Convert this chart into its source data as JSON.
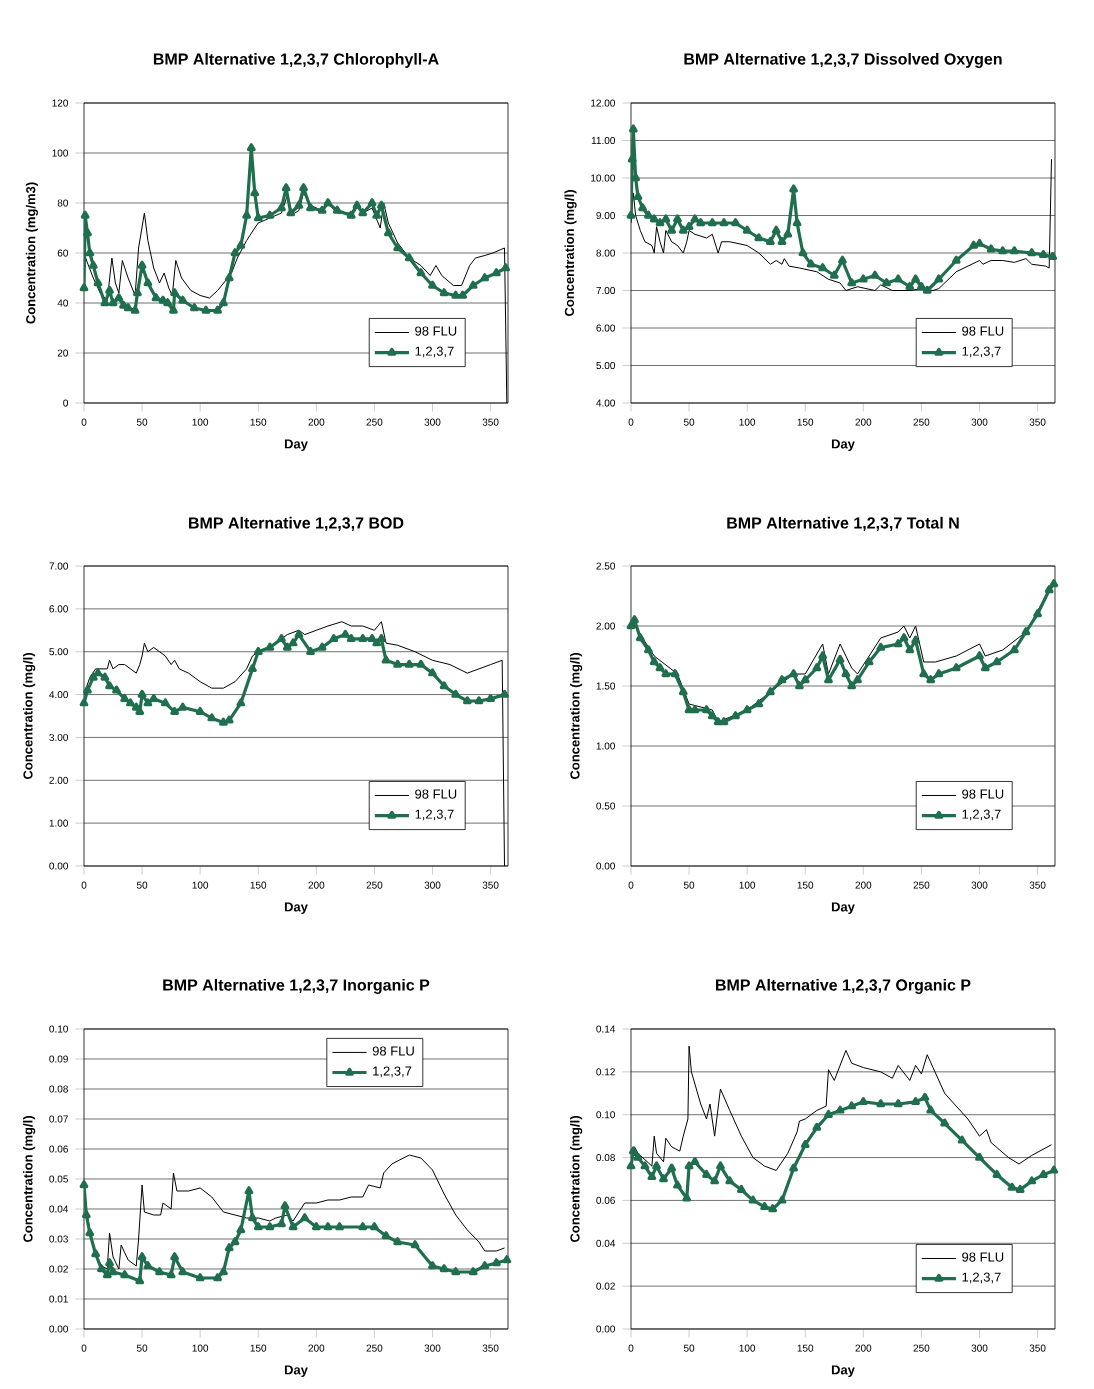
{
  "chart_data": [
    {
      "type": "line",
      "title": "BMP Alternative 1,2,3,7 Chlorophyll-A",
      "xlabel": "Day",
      "ylabel": "Concentration (mg/m3)",
      "xlim": [
        0,
        365
      ],
      "ylim": [
        0,
        120
      ],
      "xticks": [
        0,
        50,
        100,
        150,
        200,
        250,
        300,
        350
      ],
      "yticks": [
        0,
        20,
        40,
        60,
        80,
        100,
        120
      ],
      "grid": "y",
      "legend": "bottom right",
      "series": [
        {
          "name": "98 FLU",
          "color": "#000000",
          "marker": "none",
          "x": [
            0,
            3,
            8,
            14,
            20,
            24,
            27,
            30,
            33,
            38,
            44,
            47,
            52,
            55,
            60,
            65,
            69,
            73,
            76,
            79,
            84,
            92,
            100,
            108,
            115,
            122,
            127,
            132,
            140,
            147,
            150,
            160,
            170,
            175,
            178,
            185,
            189,
            195,
            205,
            210,
            218,
            230,
            235,
            240,
            248,
            255,
            258,
            262,
            270,
            280,
            290,
            298,
            303,
            308,
            318,
            325,
            332,
            337,
            345,
            352,
            362,
            364
          ],
          "values": [
            60,
            56,
            50,
            44,
            41,
            58,
            48,
            44,
            57,
            50,
            43,
            62,
            76,
            65,
            54,
            48,
            52,
            46,
            43,
            57,
            50,
            45,
            43,
            42,
            45,
            49,
            52,
            58,
            65,
            70,
            72,
            74,
            76,
            83,
            75,
            77,
            84,
            79,
            77,
            80,
            76,
            76,
            80,
            76,
            78,
            70,
            80,
            72,
            64,
            58,
            55,
            51,
            55,
            51,
            47,
            47,
            55,
            58,
            59,
            60,
            62,
            0
          ]
        },
        {
          "name": "1,2,3,7",
          "color": "#1f6e4e",
          "marker": "triangle",
          "x": [
            0,
            1,
            3,
            5,
            8,
            12,
            18,
            22,
            25,
            30,
            34,
            38,
            44,
            46,
            50,
            55,
            62,
            68,
            72,
            77,
            78,
            85,
            95,
            105,
            115,
            120,
            125,
            130,
            135,
            140,
            144,
            147,
            150,
            160,
            170,
            174,
            178,
            185,
            189,
            195,
            205,
            210,
            218,
            230,
            235,
            240,
            248,
            252,
            256,
            262,
            270,
            280,
            290,
            300,
            310,
            320,
            326,
            335,
            345,
            355,
            363
          ],
          "values": [
            46,
            75,
            68,
            60,
            55,
            48,
            40,
            45,
            40,
            42,
            39,
            38,
            37,
            44,
            55,
            48,
            42,
            41,
            40,
            37,
            44,
            41,
            38,
            37,
            37,
            40,
            50,
            60,
            63,
            75,
            102,
            84,
            74,
            75,
            78,
            86,
            76,
            79,
            86,
            78,
            77,
            80,
            77,
            75,
            79,
            76,
            80,
            75,
            79,
            68,
            62,
            58,
            52,
            47,
            44,
            43,
            43,
            47,
            50,
            52,
            54
          ]
        }
      ]
    },
    {
      "type": "line",
      "title": "BMP Alternative 1,2,3,7 Dissolved Oxygen",
      "xlabel": "Day",
      "ylabel": "Concentration (mg/l)",
      "xlim": [
        0,
        365
      ],
      "ylim": [
        4,
        12
      ],
      "xticks": [
        0,
        50,
        100,
        150,
        200,
        250,
        300,
        350
      ],
      "yticks": [
        {
          "value": 4,
          "label": "4.00"
        },
        {
          "value": 5,
          "label": "5.00"
        },
        {
          "value": 6,
          "label": "6.00"
        },
        {
          "value": 7,
          "label": "7.00"
        },
        {
          "value": 8,
          "label": "8.00"
        },
        {
          "value": 9,
          "label": "9.00"
        },
        {
          "value": 10,
          "label": "10.00"
        },
        {
          "value": 11,
          "label": "11.00"
        },
        {
          "value": 12,
          "label": "12.00"
        }
      ],
      "grid": "y",
      "legend": "bottom right",
      "series": [
        {
          "name": "98 FLU",
          "color": "#000000",
          "marker": "none",
          "x": [
            0,
            2,
            4,
            8,
            12,
            18,
            20,
            22,
            25,
            28,
            30,
            35,
            40,
            45,
            48,
            50,
            55,
            65,
            70,
            75,
            78,
            85,
            100,
            110,
            120,
            125,
            130,
            132,
            136,
            145,
            160,
            170,
            180,
            185,
            195,
            210,
            215,
            225,
            240,
            250,
            260,
            265,
            280,
            300,
            303,
            310,
            320,
            330,
            340,
            345,
            357,
            360,
            362
          ],
          "values": [
            8.8,
            9.6,
            9.0,
            8.6,
            8.3,
            8.2,
            8.0,
            8.7,
            8.3,
            8.0,
            8.6,
            8.3,
            8.2,
            8.0,
            8.3,
            8.6,
            8.5,
            8.4,
            8.5,
            8.0,
            8.3,
            8.3,
            8.2,
            8.0,
            7.7,
            7.8,
            7.7,
            7.85,
            7.65,
            7.6,
            7.5,
            7.3,
            7.2,
            7.0,
            7.1,
            7.0,
            7.15,
            7.0,
            7.0,
            7.05,
            7.0,
            7.05,
            7.5,
            7.8,
            7.7,
            7.8,
            7.8,
            7.75,
            7.85,
            7.7,
            7.65,
            7.6,
            10.5
          ]
        },
        {
          "name": "1,2,3,7",
          "color": "#1f6e4e",
          "marker": "triangle",
          "x": [
            0,
            1,
            2,
            4,
            6,
            10,
            15,
            20,
            25,
            30,
            35,
            40,
            45,
            50,
            55,
            60,
            70,
            80,
            90,
            100,
            110,
            120,
            125,
            130,
            135,
            140,
            143,
            148,
            155,
            165,
            175,
            182,
            190,
            200,
            210,
            220,
            230,
            240,
            245,
            250,
            255,
            265,
            280,
            295,
            300,
            310,
            320,
            330,
            345,
            355,
            363
          ],
          "values": [
            9.0,
            10.5,
            11.3,
            10.0,
            9.5,
            9.2,
            9.0,
            8.9,
            8.8,
            8.9,
            8.6,
            8.9,
            8.6,
            8.7,
            8.9,
            8.8,
            8.8,
            8.8,
            8.8,
            8.6,
            8.4,
            8.3,
            8.6,
            8.3,
            8.5,
            9.7,
            8.8,
            8.0,
            7.7,
            7.6,
            7.4,
            7.8,
            7.2,
            7.3,
            7.4,
            7.2,
            7.3,
            7.1,
            7.3,
            7.1,
            7.0,
            7.3,
            7.8,
            8.2,
            8.25,
            8.1,
            8.05,
            8.05,
            8.0,
            7.95,
            7.9
          ]
        }
      ]
    },
    {
      "type": "line",
      "title": "BMP Alternative 1,2,3,7 BOD",
      "xlabel": "Day",
      "ylabel": "Concentration (mg/l)",
      "xlim": [
        0,
        365
      ],
      "ylim": [
        0,
        7
      ],
      "xticks": [
        0,
        50,
        100,
        150,
        200,
        250,
        300,
        350
      ],
      "yticks": [
        {
          "value": 0,
          "label": "0.00"
        },
        {
          "value": 1,
          "label": "1.00"
        },
        {
          "value": 2,
          "label": "2.00"
        },
        {
          "value": 3,
          "label": "3.00"
        },
        {
          "value": 4,
          "label": "4.00"
        },
        {
          "value": 5,
          "label": "5.00"
        },
        {
          "value": 6,
          "label": "6.00"
        },
        {
          "value": 7,
          "label": "7.00"
        }
      ],
      "grid": "y",
      "legend": "bottom right",
      "series": [
        {
          "name": "98 FLU",
          "color": "#000000",
          "marker": "none",
          "x": [
            0,
            5,
            10,
            15,
            20,
            22,
            25,
            30,
            35,
            40,
            45,
            48,
            50,
            52,
            55,
            60,
            65,
            70,
            75,
            78,
            82,
            90,
            100,
            110,
            120,
            130,
            140,
            145,
            150,
            165,
            175,
            185,
            190,
            200,
            210,
            222,
            230,
            240,
            250,
            256,
            260,
            270,
            285,
            300,
            315,
            330,
            340,
            350,
            360,
            362
          ],
          "values": [
            4.0,
            4.4,
            4.6,
            4.6,
            4.6,
            4.8,
            4.6,
            4.7,
            4.7,
            4.6,
            4.5,
            4.7,
            4.9,
            5.2,
            5.0,
            5.1,
            5.0,
            4.9,
            4.7,
            4.8,
            4.6,
            4.5,
            4.3,
            4.15,
            4.15,
            4.3,
            4.6,
            4.9,
            5.0,
            5.2,
            5.4,
            5.5,
            5.4,
            5.5,
            5.6,
            5.7,
            5.6,
            5.6,
            5.5,
            5.7,
            5.2,
            5.15,
            5.0,
            4.8,
            4.7,
            4.5,
            4.6,
            4.7,
            4.8,
            0.0
          ]
        },
        {
          "name": "1,2,3,7",
          "color": "#1f6e4e",
          "marker": "triangle",
          "x": [
            0,
            3,
            8,
            12,
            18,
            22,
            28,
            35,
            40,
            45,
            48,
            50,
            55,
            60,
            70,
            78,
            85,
            100,
            110,
            120,
            125,
            135,
            145,
            150,
            160,
            170,
            175,
            180,
            185,
            195,
            205,
            215,
            225,
            230,
            240,
            248,
            252,
            256,
            260,
            270,
            280,
            290,
            300,
            310,
            320,
            330,
            340,
            350,
            362
          ],
          "values": [
            3.8,
            4.1,
            4.4,
            4.5,
            4.4,
            4.2,
            4.1,
            3.9,
            3.8,
            3.7,
            3.6,
            4.0,
            3.8,
            3.9,
            3.8,
            3.6,
            3.7,
            3.6,
            3.45,
            3.35,
            3.4,
            3.8,
            4.6,
            5.0,
            5.1,
            5.3,
            5.1,
            5.2,
            5.4,
            5.0,
            5.1,
            5.3,
            5.4,
            5.3,
            5.3,
            5.3,
            5.2,
            5.3,
            4.8,
            4.7,
            4.7,
            4.7,
            4.5,
            4.2,
            4.0,
            3.85,
            3.85,
            3.9,
            4.0
          ]
        }
      ]
    },
    {
      "type": "line",
      "title": "BMP Alternative 1,2,3,7 Total N",
      "xlabel": "Day",
      "ylabel": "Concentration (mg/l)",
      "xlim": [
        0,
        365
      ],
      "ylim": [
        0,
        2.5
      ],
      "xticks": [
        0,
        50,
        100,
        150,
        200,
        250,
        300,
        350
      ],
      "yticks": [
        {
          "value": 0,
          "label": "0.00"
        },
        {
          "value": 0.5,
          "label": "0.50"
        },
        {
          "value": 1,
          "label": "1.00"
        },
        {
          "value": 1.5,
          "label": "1.50"
        },
        {
          "value": 2,
          "label": "2.00"
        },
        {
          "value": 2.5,
          "label": "2.50"
        }
      ],
      "grid": "y",
      "legend": "bottom right",
      "series": [
        {
          "name": "98 FLU",
          "color": "#000000",
          "marker": "none",
          "x": [
            0,
            20,
            40,
            50,
            70,
            75,
            100,
            140,
            150,
            165,
            170,
            180,
            190,
            195,
            215,
            230,
            235,
            240,
            245,
            252,
            262,
            280,
            300,
            305,
            320,
            340,
            360,
            364
          ],
          "values": [
            2.05,
            1.75,
            1.6,
            1.35,
            1.3,
            1.2,
            1.3,
            1.6,
            1.6,
            1.85,
            1.6,
            1.85,
            1.65,
            1.6,
            1.9,
            1.95,
            2.0,
            1.9,
            2.0,
            1.7,
            1.7,
            1.75,
            1.85,
            1.75,
            1.8,
            1.95,
            2.3,
            2.35
          ]
        },
        {
          "name": "1,2,3,7",
          "color": "#1f6e4e",
          "marker": "triangle",
          "x": [
            0,
            3,
            8,
            15,
            20,
            25,
            30,
            38,
            45,
            50,
            55,
            65,
            70,
            75,
            80,
            90,
            100,
            110,
            120,
            130,
            140,
            145,
            150,
            160,
            165,
            170,
            180,
            185,
            190,
            195,
            205,
            215,
            230,
            235,
            240,
            245,
            252,
            258,
            265,
            280,
            300,
            305,
            315,
            330,
            340,
            350,
            360,
            364
          ],
          "values": [
            2.0,
            2.05,
            1.9,
            1.8,
            1.7,
            1.65,
            1.6,
            1.6,
            1.45,
            1.3,
            1.3,
            1.3,
            1.25,
            1.2,
            1.2,
            1.25,
            1.3,
            1.35,
            1.45,
            1.55,
            1.6,
            1.5,
            1.55,
            1.65,
            1.75,
            1.55,
            1.72,
            1.6,
            1.5,
            1.55,
            1.7,
            1.82,
            1.85,
            1.9,
            1.8,
            1.88,
            1.6,
            1.55,
            1.6,
            1.65,
            1.75,
            1.65,
            1.7,
            1.8,
            1.95,
            2.1,
            2.3,
            2.35
          ]
        }
      ]
    },
    {
      "type": "line",
      "title": "BMP Alternative 1,2,3,7 Inorganic P",
      "xlabel": "Day",
      "ylabel": "Concentration (mg/l)",
      "xlim": [
        0,
        365
      ],
      "ylim": [
        0,
        0.1
      ],
      "xticks": [
        0,
        50,
        100,
        150,
        200,
        250,
        300,
        350
      ],
      "yticks": [
        {
          "value": 0,
          "label": "0.00"
        },
        {
          "value": 0.01,
          "label": "0.01"
        },
        {
          "value": 0.02,
          "label": "0.02"
        },
        {
          "value": 0.03,
          "label": "0.03"
        },
        {
          "value": 0.04,
          "label": "0.04"
        },
        {
          "value": 0.05,
          "label": "0.05"
        },
        {
          "value": 0.06,
          "label": "0.06"
        },
        {
          "value": 0.07,
          "label": "0.07"
        },
        {
          "value": 0.08,
          "label": "0.08"
        },
        {
          "value": 0.09,
          "label": "0.09"
        },
        {
          "value": 0.1,
          "label": "0.10"
        }
      ],
      "grid": "y",
      "legend": "top right",
      "series": [
        {
          "name": "98 FLU",
          "color": "#000000",
          "marker": "none",
          "x": [
            0,
            2,
            5,
            10,
            15,
            20,
            22,
            25,
            30,
            32,
            38,
            45,
            47,
            50,
            52,
            60,
            66,
            68,
            75,
            77,
            80,
            90,
            100,
            110,
            120,
            130,
            140,
            150,
            160,
            165,
            175,
            180,
            190,
            200,
            210,
            220,
            230,
            240,
            245,
            255,
            258,
            265,
            280,
            290,
            300,
            310,
            320,
            330,
            340,
            345,
            355,
            362
          ],
          "values": [
            0.048,
            0.04,
            0.033,
            0.025,
            0.021,
            0.02,
            0.032,
            0.024,
            0.02,
            0.028,
            0.023,
            0.021,
            0.03,
            0.048,
            0.039,
            0.038,
            0.038,
            0.042,
            0.04,
            0.052,
            0.046,
            0.046,
            0.047,
            0.044,
            0.039,
            0.038,
            0.037,
            0.037,
            0.036,
            0.037,
            0.038,
            0.036,
            0.042,
            0.042,
            0.043,
            0.043,
            0.044,
            0.044,
            0.048,
            0.047,
            0.052,
            0.055,
            0.058,
            0.057,
            0.053,
            0.045,
            0.038,
            0.033,
            0.029,
            0.026,
            0.026,
            0.027
          ]
        },
        {
          "name": "1,2,3,7",
          "color": "#1f6e4e",
          "marker": "triangle",
          "x": [
            0,
            2,
            5,
            10,
            15,
            20,
            22,
            25,
            35,
            48,
            50,
            55,
            65,
            75,
            78,
            85,
            100,
            115,
            120,
            125,
            130,
            135,
            142,
            145,
            150,
            160,
            170,
            173,
            180,
            190,
            200,
            210,
            220,
            240,
            250,
            260,
            270,
            285,
            300,
            310,
            320,
            335,
            345,
            355,
            364
          ],
          "values": [
            0.048,
            0.038,
            0.032,
            0.025,
            0.02,
            0.018,
            0.022,
            0.019,
            0.018,
            0.016,
            0.024,
            0.021,
            0.019,
            0.018,
            0.024,
            0.019,
            0.017,
            0.017,
            0.019,
            0.027,
            0.029,
            0.033,
            0.046,
            0.037,
            0.034,
            0.034,
            0.035,
            0.041,
            0.034,
            0.037,
            0.034,
            0.034,
            0.034,
            0.034,
            0.034,
            0.031,
            0.029,
            0.028,
            0.021,
            0.02,
            0.019,
            0.019,
            0.021,
            0.022,
            0.023
          ]
        }
      ]
    },
    {
      "type": "line",
      "title": "BMP Alternative 1,2,3,7 Organic P",
      "xlabel": "Day",
      "ylabel": "Concentration (mg/l)",
      "xlim": [
        0,
        365
      ],
      "ylim": [
        0,
        0.14
      ],
      "xticks": [
        0,
        50,
        100,
        150,
        200,
        250,
        300,
        350
      ],
      "yticks": [
        {
          "value": 0,
          "label": "0.00"
        },
        {
          "value": 0.02,
          "label": "0.02"
        },
        {
          "value": 0.04,
          "label": "0.04"
        },
        {
          "value": 0.06,
          "label": "0.06"
        },
        {
          "value": 0.08,
          "label": "0.08"
        },
        {
          "value": 0.1,
          "label": "0.10"
        },
        {
          "value": 0.12,
          "label": "0.12"
        },
        {
          "value": 0.14,
          "label": "0.14"
        }
      ],
      "grid": "y",
      "legend": "bottom right",
      "series": [
        {
          "name": "98 FLU",
          "color": "#000000",
          "marker": "none",
          "x": [
            0,
            3,
            6,
            12,
            18,
            20,
            22,
            28,
            30,
            35,
            42,
            45,
            49,
            50,
            52,
            60,
            65,
            68,
            72,
            77,
            85,
            95,
            105,
            115,
            125,
            135,
            143,
            145,
            150,
            160,
            168,
            170,
            175,
            185,
            190,
            200,
            215,
            225,
            230,
            240,
            245,
            250,
            255,
            260,
            270,
            290,
            300,
            306,
            310,
            325,
            334,
            345,
            362
          ],
          "values": [
            0.083,
            0.085,
            0.082,
            0.079,
            0.076,
            0.09,
            0.082,
            0.078,
            0.089,
            0.085,
            0.083,
            0.09,
            0.098,
            0.132,
            0.12,
            0.105,
            0.098,
            0.105,
            0.09,
            0.112,
            0.102,
            0.09,
            0.08,
            0.076,
            0.074,
            0.082,
            0.092,
            0.097,
            0.098,
            0.102,
            0.104,
            0.121,
            0.116,
            0.13,
            0.124,
            0.122,
            0.12,
            0.117,
            0.123,
            0.116,
            0.123,
            0.119,
            0.128,
            0.122,
            0.11,
            0.098,
            0.09,
            0.093,
            0.087,
            0.08,
            0.077,
            0.081,
            0.086
          ]
        },
        {
          "name": "1,2,3,7",
          "color": "#1f6e4e",
          "marker": "triangle",
          "x": [
            0,
            2,
            6,
            12,
            18,
            22,
            28,
            35,
            40,
            48,
            50,
            55,
            65,
            72,
            77,
            85,
            95,
            105,
            115,
            122,
            130,
            140,
            150,
            160,
            170,
            180,
            190,
            200,
            215,
            230,
            245,
            253,
            258,
            270,
            285,
            300,
            315,
            328,
            335,
            345,
            355,
            364
          ],
          "values": [
            0.076,
            0.083,
            0.08,
            0.076,
            0.071,
            0.076,
            0.07,
            0.075,
            0.067,
            0.061,
            0.076,
            0.078,
            0.072,
            0.069,
            0.076,
            0.069,
            0.065,
            0.06,
            0.057,
            0.056,
            0.06,
            0.075,
            0.086,
            0.094,
            0.1,
            0.102,
            0.104,
            0.106,
            0.105,
            0.105,
            0.106,
            0.108,
            0.102,
            0.096,
            0.088,
            0.08,
            0.072,
            0.066,
            0.065,
            0.069,
            0.072,
            0.074
          ]
        }
      ]
    }
  ]
}
